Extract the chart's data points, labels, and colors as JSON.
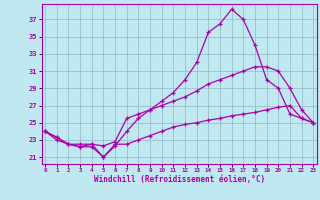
{
  "xlabel": "Windchill (Refroidissement éolien,°C)",
  "bg_color": "#c0e8f0",
  "grid_color": "#9abfcc",
  "line_color": "#aa00aa",
  "x_ticks": [
    0,
    1,
    2,
    3,
    4,
    5,
    6,
    7,
    8,
    9,
    10,
    11,
    12,
    13,
    14,
    15,
    16,
    17,
    18,
    19,
    20,
    21,
    22,
    23
  ],
  "y_ticks": [
    21,
    23,
    25,
    27,
    29,
    31,
    33,
    35,
    37
  ],
  "xlim": [
    -0.3,
    23.3
  ],
  "ylim": [
    20.2,
    38.8
  ],
  "line1_x": [
    0,
    1,
    2,
    3,
    4,
    5,
    6,
    7,
    8,
    9,
    10,
    11,
    12,
    13,
    14,
    15,
    16,
    17,
    18,
    19,
    20,
    21,
    22,
    23
  ],
  "line1_y": [
    24.0,
    23.0,
    22.5,
    22.2,
    22.2,
    21.0,
    22.3,
    24.0,
    25.5,
    26.5,
    27.5,
    28.5,
    30.0,
    32.0,
    35.5,
    36.5,
    38.2,
    37.0,
    34.0,
    30.0,
    29.0,
    26.0,
    25.5,
    25.0
  ],
  "line2_x": [
    0,
    1,
    2,
    3,
    4,
    5,
    6,
    7,
    8,
    9,
    10,
    11,
    12,
    13,
    14,
    15,
    16,
    17,
    18,
    19,
    20,
    21,
    22,
    23
  ],
  "line2_y": [
    24.0,
    23.3,
    22.5,
    22.2,
    22.5,
    22.3,
    22.8,
    25.5,
    26.0,
    26.5,
    27.0,
    27.5,
    28.0,
    28.7,
    29.5,
    30.0,
    30.5,
    31.0,
    31.5,
    31.5,
    31.0,
    29.0,
    26.5,
    25.0
  ],
  "line3_x": [
    0,
    1,
    2,
    3,
    4,
    5,
    6,
    7,
    8,
    9,
    10,
    11,
    12,
    13,
    14,
    15,
    16,
    17,
    18,
    19,
    20,
    21,
    22,
    23
  ],
  "line3_y": [
    24.0,
    23.3,
    22.5,
    22.5,
    22.5,
    21.0,
    22.5,
    22.5,
    23.0,
    23.5,
    24.0,
    24.5,
    24.8,
    25.0,
    25.3,
    25.5,
    25.8,
    26.0,
    26.2,
    26.5,
    26.8,
    27.0,
    25.5,
    25.0
  ]
}
